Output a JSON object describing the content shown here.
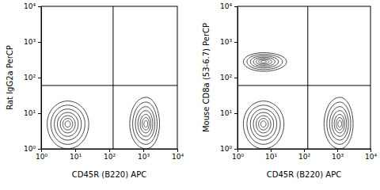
{
  "chart_data": [
    {
      "type": "contour",
      "x_label": "CD45R (B220) APC",
      "y_label": "Rat IgG2a PerCP",
      "log": true,
      "xlim": [
        1,
        10000
      ],
      "ylim": [
        1,
        10000
      ],
      "xticks": [
        {
          "value": 1,
          "label": "10⁰"
        },
        {
          "value": 10,
          "label": "10¹"
        },
        {
          "value": 100,
          "label": "10²"
        },
        {
          "value": 1000,
          "label": "10³"
        },
        {
          "value": 10000,
          "label": "10⁴"
        }
      ],
      "yticks": [
        {
          "value": 1,
          "label": "10⁰"
        },
        {
          "value": 10,
          "label": "10¹"
        },
        {
          "value": 100,
          "label": "10²"
        },
        {
          "value": 1000,
          "label": "10³"
        },
        {
          "value": 10000,
          "label": "10⁴"
        }
      ],
      "gates": {
        "x": 130,
        "y": 60
      },
      "color": "#333333",
      "populations": [
        {
          "x": 6,
          "y": 5,
          "x_range": [
            1.5,
            25
          ],
          "y_range": [
            1,
            22
          ]
        },
        {
          "x": 1200,
          "y": 5,
          "x_range": [
            400,
            3000
          ],
          "y_range": [
            1,
            28
          ]
        }
      ]
    },
    {
      "type": "contour",
      "x_label": "CD45R (B220) APC",
      "y_label": "Mouse CD8a (53-6.7) PerCP",
      "log": true,
      "xlim": [
        1,
        10000
      ],
      "ylim": [
        1,
        10000
      ],
      "xticks": [
        {
          "value": 1,
          "label": "10⁰"
        },
        {
          "value": 10,
          "label": "10¹"
        },
        {
          "value": 100,
          "label": "10²"
        },
        {
          "value": 1000,
          "label": "10³"
        },
        {
          "value": 10000,
          "label": "10⁴"
        }
      ],
      "yticks": [
        {
          "value": 1,
          "label": "10⁰"
        },
        {
          "value": 10,
          "label": "10¹"
        },
        {
          "value": 100,
          "label": "10²"
        },
        {
          "value": 1000,
          "label": "10³"
        },
        {
          "value": 10000,
          "label": "10⁴"
        }
      ],
      "gates": {
        "x": 130,
        "y": 60
      },
      "color": "#333333",
      "populations": [
        {
          "x": 6,
          "y": 5,
          "x_range": [
            1.5,
            25
          ],
          "y_range": [
            1,
            22
          ]
        },
        {
          "x": 1200,
          "y": 5,
          "x_range": [
            400,
            3000
          ],
          "y_range": [
            1,
            28
          ]
        },
        {
          "x": 6,
          "y": 280,
          "x_range": [
            1.5,
            30
          ],
          "y_range": [
            150,
            500
          ]
        }
      ]
    }
  ]
}
